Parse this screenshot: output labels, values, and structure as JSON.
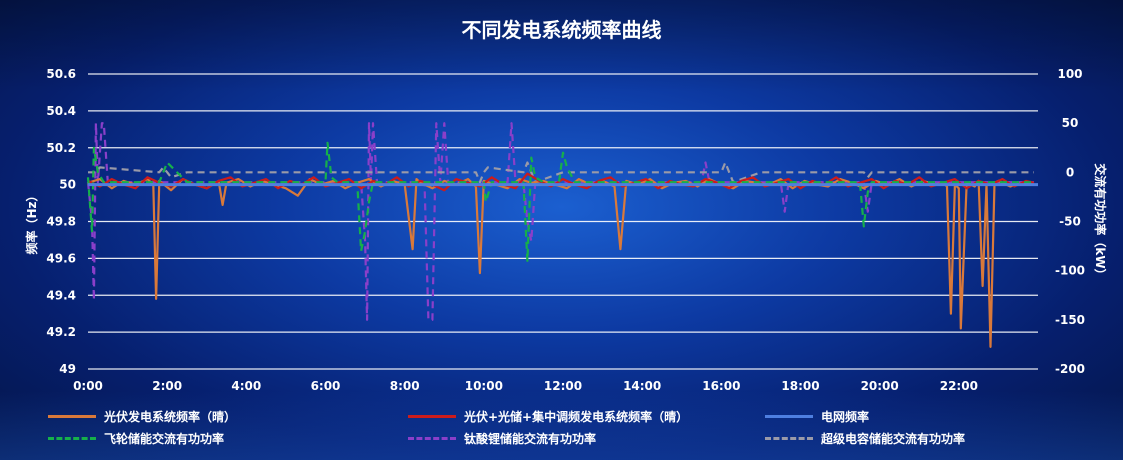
{
  "chart_data": {
    "type": "line",
    "title": "不同发电系统频率曲线",
    "ylabel": "频率（Hz）",
    "y2label": "交流有功功率（kW）",
    "xlim": [
      0,
      24
    ],
    "ylim": [
      49,
      50.6
    ],
    "y2lim": [
      -200,
      100
    ],
    "x_ticks": [
      "0:00",
      "2:00",
      "4:00",
      "6:00",
      "8:00",
      "10:00",
      "12:00",
      "14:00",
      "16:00",
      "18:00",
      "20:00",
      "22:00"
    ],
    "y_ticks": [
      "49",
      "49.2",
      "49.4",
      "49.6",
      "49.8",
      "50",
      "50.2",
      "50.4",
      "50.6"
    ],
    "y2_ticks": [
      "-200",
      "-150",
      "-100",
      "-50",
      "0",
      "50",
      "100"
    ],
    "grid": true,
    "legend": "bottom",
    "series": [
      {
        "name": "光伏发电系统频率（晴）",
        "axis": "left",
        "color": "#d9793a",
        "dashed": false,
        "x": [
          0,
          0.3,
          0.6,
          0.9,
          1.2,
          1.5,
          1.65,
          1.72,
          1.8,
          2.1,
          2.4,
          2.7,
          3.0,
          3.3,
          3.4,
          3.5,
          3.8,
          4.1,
          4.4,
          4.7,
          5.0,
          5.3,
          5.6,
          5.9,
          6.2,
          6.5,
          6.8,
          7.1,
          7.4,
          7.7,
          8.0,
          8.2,
          8.3,
          8.4,
          8.7,
          9.0,
          9.3,
          9.6,
          9.8,
          9.9,
          10.0,
          10.3,
          10.6,
          10.9,
          11.2,
          11.5,
          11.8,
          12.1,
          12.4,
          12.7,
          13.0,
          13.3,
          13.45,
          13.6,
          13.9,
          14.2,
          14.5,
          14.8,
          15.1,
          15.4,
          15.7,
          16.0,
          16.3,
          16.6,
          16.9,
          17.2,
          17.5,
          17.8,
          18.1,
          18.4,
          18.7,
          19.0,
          19.3,
          19.6,
          19.9,
          20.2,
          20.5,
          20.8,
          21.1,
          21.4,
          21.6,
          21.7,
          21.8,
          21.9,
          22.0,
          22.05,
          22.2,
          22.4,
          22.5,
          22.6,
          22.7,
          22.8,
          22.9,
          23.0,
          23.3,
          23.6,
          23.9
        ],
        "values": [
          50.01,
          50.03,
          49.98,
          50.02,
          50.0,
          50.03,
          50.0,
          49.38,
          50.02,
          49.97,
          50.03,
          50.0,
          49.98,
          50.02,
          49.89,
          50.01,
          50.03,
          49.99,
          50.02,
          50.0,
          49.98,
          49.94,
          50.03,
          50.0,
          50.02,
          49.98,
          50.01,
          50.03,
          49.99,
          50.02,
          50.0,
          49.65,
          50.03,
          50.01,
          49.98,
          50.02,
          50.0,
          50.03,
          49.99,
          49.52,
          50.02,
          50.0,
          49.98,
          50.03,
          50.01,
          50.02,
          50.0,
          49.98,
          50.03,
          50.0,
          50.02,
          49.99,
          49.65,
          50.02,
          50.0,
          50.03,
          49.98,
          50.01,
          50.02,
          49.99,
          50.03,
          50.0,
          49.98,
          50.02,
          50.01,
          50.0,
          50.03,
          49.98,
          50.02,
          50.0,
          49.99,
          50.03,
          50.01,
          49.98,
          50.02,
          50.0,
          50.03,
          49.99,
          50.02,
          50.0,
          50.01,
          49.99,
          49.3,
          50.0,
          49.98,
          49.22,
          50.01,
          49.99,
          50.02,
          49.45,
          50.0,
          49.12,
          50.01,
          50.02,
          49.99,
          50.01,
          50.0
        ]
      },
      {
        "name": "光伏+光储+集中调频发电系统频率（晴）",
        "axis": "left",
        "color": "#cc1c1c",
        "dashed": false,
        "x": [
          0,
          0.3,
          0.6,
          0.9,
          1.2,
          1.5,
          1.8,
          2.1,
          2.4,
          2.7,
          3.0,
          3.3,
          3.6,
          3.9,
          4.2,
          4.5,
          4.8,
          5.1,
          5.4,
          5.7,
          6.0,
          6.3,
          6.6,
          6.9,
          7.2,
          7.5,
          7.8,
          8.1,
          8.4,
          8.7,
          9.0,
          9.3,
          9.6,
          9.9,
          10.2,
          10.5,
          10.8,
          11.1,
          11.4,
          11.7,
          12.0,
          12.3,
          12.6,
          12.9,
          13.2,
          13.5,
          13.8,
          14.1,
          14.4,
          14.7,
          15.0,
          15.3,
          15.6,
          15.9,
          16.2,
          16.5,
          16.8,
          17.1,
          17.4,
          17.7,
          18.0,
          18.3,
          18.6,
          18.9,
          19.2,
          19.5,
          19.8,
          20.1,
          20.4,
          20.7,
          21.0,
          21.3,
          21.6,
          21.9,
          22.2,
          22.5,
          22.8,
          23.1,
          23.4,
          23.7,
          23.9
        ],
        "values": [
          50.02,
          49.99,
          50.03,
          50.0,
          49.98,
          50.04,
          50.01,
          49.99,
          50.03,
          50.0,
          49.98,
          50.02,
          50.04,
          49.99,
          50.01,
          50.03,
          49.98,
          50.02,
          50.0,
          50.04,
          49.99,
          50.01,
          50.03,
          49.98,
          50.02,
          50.0,
          50.04,
          49.99,
          50.02,
          50.0,
          49.97,
          50.03,
          50.01,
          49.99,
          50.04,
          50.0,
          49.98,
          50.06,
          50.02,
          49.99,
          50.03,
          50.0,
          49.98,
          50.02,
          50.04,
          49.99,
          50.01,
          50.03,
          49.98,
          50.02,
          50.0,
          49.99,
          50.03,
          50.01,
          49.98,
          50.02,
          50.04,
          49.99,
          50.01,
          50.03,
          49.98,
          50.02,
          50.0,
          50.04,
          49.99,
          50.01,
          50.03,
          49.98,
          50.02,
          50.0,
          50.04,
          49.99,
          50.01,
          50.03,
          49.98,
          50.02,
          50.0,
          50.03,
          49.99,
          50.02,
          50.01
        ]
      },
      {
        "name": "电网频率",
        "axis": "left",
        "color": "#4e7fe0",
        "dashed": false,
        "x": [
          0,
          24
        ],
        "values": [
          50.0,
          50.0
        ]
      },
      {
        "name": "飞轮储能交流有功功率",
        "axis": "right",
        "color": "#16b04a",
        "dashed": true,
        "x": [
          0,
          0.1,
          0.15,
          0.25,
          0.4,
          1.8,
          2.0,
          2.5,
          6.0,
          6.05,
          6.15,
          6.3,
          6.8,
          6.9,
          7.0,
          7.1,
          7.2,
          8.0,
          10.0,
          10.05,
          10.2,
          11.0,
          11.1,
          11.2,
          11.3,
          11.5,
          11.9,
          12.0,
          12.1,
          12.3,
          16.0,
          19.0,
          19.5,
          19.6,
          19.7,
          19.8,
          19.9,
          23.9
        ],
        "values": [
          -5,
          -60,
          25,
          0,
          -10,
          -10,
          10,
          -10,
          -10,
          30,
          -5,
          -10,
          -10,
          -80,
          -60,
          -30,
          -10,
          -10,
          -10,
          -30,
          -10,
          -10,
          -90,
          15,
          -5,
          -10,
          -10,
          20,
          5,
          -10,
          -10,
          -10,
          -10,
          -55,
          -20,
          -10,
          -10,
          -10
        ]
      },
      {
        "name": "钛酸锂储能交流有功功率",
        "axis": "right",
        "color": "#8a3fc9",
        "dashed": true,
        "x": [
          0,
          0.1,
          0.15,
          0.2,
          0.25,
          0.35,
          0.4,
          0.5,
          0.6,
          6.0,
          6.9,
          7.0,
          7.05,
          7.1,
          7.15,
          7.2,
          7.3,
          7.4,
          7.5,
          8.0,
          8.5,
          8.6,
          8.7,
          8.8,
          8.9,
          9.0,
          9.1,
          9.2,
          9.3,
          10.5,
          10.6,
          10.7,
          10.8,
          11.0,
          11.1,
          11.2,
          11.3,
          11.4,
          14.0,
          15.5,
          15.6,
          15.7,
          17.0,
          17.5,
          17.6,
          17.7,
          17.8,
          18.0,
          19.6,
          19.7,
          19.8,
          20.0,
          23.9
        ],
        "values": [
          -10,
          -50,
          -130,
          50,
          -10,
          50,
          50,
          -10,
          -10,
          -10,
          -10,
          -70,
          -150,
          50,
          -10,
          50,
          -10,
          -10,
          -10,
          -10,
          -10,
          -150,
          -150,
          50,
          -10,
          50,
          -10,
          -10,
          -10,
          -10,
          -10,
          50,
          -10,
          -10,
          -50,
          -70,
          -10,
          -10,
          -10,
          -10,
          10,
          -10,
          -10,
          -10,
          -40,
          -10,
          -10,
          -10,
          -10,
          -40,
          -10,
          -10,
          -10
        ]
      },
      {
        "name": "超级电容储能交流有功功率",
        "axis": "right",
        "color": "#9a9aa8",
        "dashed": true,
        "x": [
          0,
          0.2,
          0.3,
          1.8,
          1.9,
          2.0,
          2.1,
          2.5,
          9.8,
          9.9,
          10.0,
          10.1,
          11.0,
          11.1,
          11.2,
          11.3,
          12.0,
          12.5,
          15.0,
          15.5,
          16.0,
          16.1,
          16.2,
          16.3,
          17.0,
          19.0,
          19.6,
          19.7,
          19.8,
          20.0,
          23.9
        ],
        "values": [
          0,
          0,
          5,
          0,
          5,
          0,
          -5,
          0,
          0,
          -10,
          0,
          5,
          0,
          10,
          0,
          -10,
          0,
          0,
          0,
          0,
          0,
          10,
          0,
          -10,
          0,
          0,
          0,
          -5,
          0,
          0,
          0
        ]
      }
    ]
  }
}
